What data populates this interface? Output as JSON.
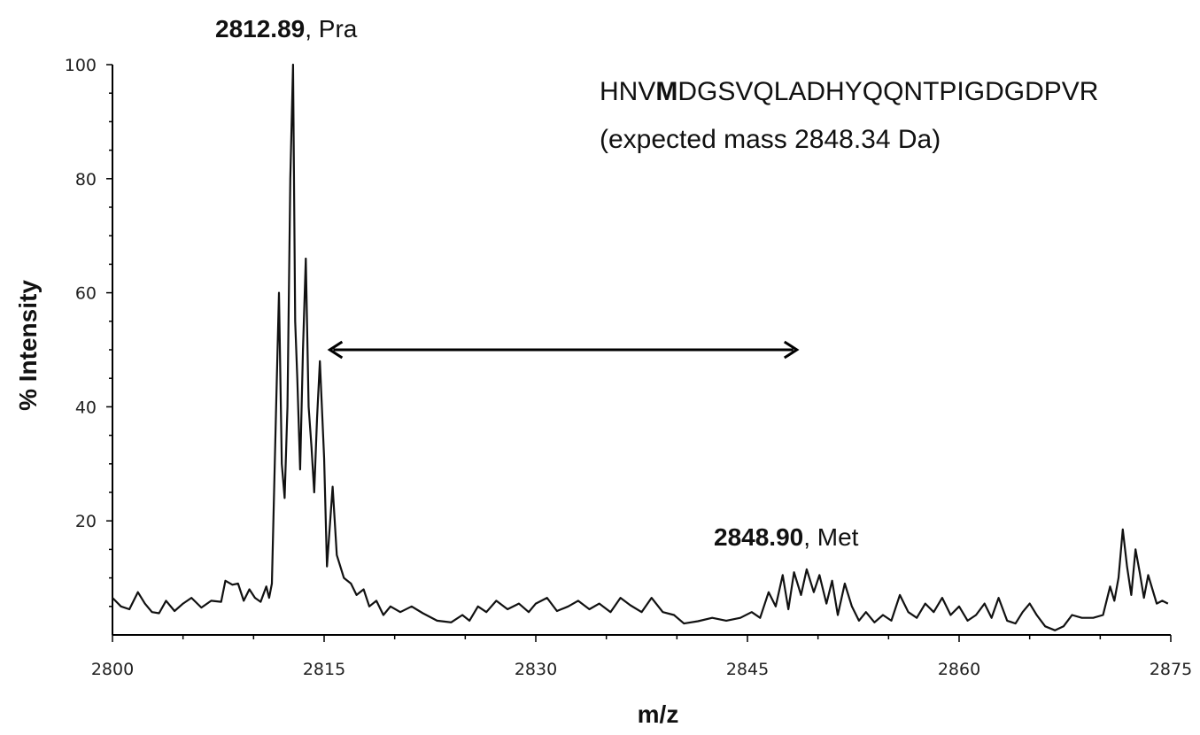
{
  "chart_data": {
    "type": "line",
    "xlabel": "m/z",
    "ylabel": "% Intensity",
    "xlim": [
      2800,
      2875
    ],
    "ylim": [
      0,
      100
    ],
    "x_ticks": [
      "2800",
      "2815",
      "2830",
      "2845",
      "2860",
      "2875"
    ],
    "y_ticks": [
      "20",
      "40",
      "60",
      "80",
      "100"
    ],
    "series": [
      {
        "points": [
          [
            2800.0,
            6.5
          ],
          [
            2800.6,
            5.0
          ],
          [
            2801.2,
            4.5
          ],
          [
            2801.8,
            7.5
          ],
          [
            2802.3,
            5.5
          ],
          [
            2802.8,
            4.0
          ],
          [
            2803.3,
            3.8
          ],
          [
            2803.8,
            6.0
          ],
          [
            2804.4,
            4.2
          ],
          [
            2805.0,
            5.5
          ],
          [
            2805.6,
            6.5
          ],
          [
            2806.3,
            4.8
          ],
          [
            2807.0,
            6.0
          ],
          [
            2807.7,
            5.8
          ],
          [
            2808.0,
            9.5
          ],
          [
            2808.5,
            8.8
          ],
          [
            2808.9,
            9.0
          ],
          [
            2809.3,
            6.0
          ],
          [
            2809.7,
            8.0
          ],
          [
            2810.1,
            6.5
          ],
          [
            2810.5,
            5.8
          ],
          [
            2810.9,
            8.5
          ],
          [
            2811.1,
            6.5
          ],
          [
            2811.3,
            9.0
          ],
          [
            2811.6,
            40.0
          ],
          [
            2811.8,
            60.0
          ],
          [
            2812.0,
            30.0
          ],
          [
            2812.2,
            24.0
          ],
          [
            2812.4,
            40.0
          ],
          [
            2812.6,
            80.0
          ],
          [
            2812.8,
            100.0
          ],
          [
            2812.95,
            55.0
          ],
          [
            2813.1,
            45.0
          ],
          [
            2813.3,
            29.0
          ],
          [
            2813.5,
            50.0
          ],
          [
            2813.7,
            66.0
          ],
          [
            2813.9,
            40.0
          ],
          [
            2814.1,
            33.0
          ],
          [
            2814.3,
            25.0
          ],
          [
            2814.5,
            38.0
          ],
          [
            2814.7,
            48.0
          ],
          [
            2815.0,
            31.0
          ],
          [
            2815.2,
            12.0
          ],
          [
            2815.6,
            26.0
          ],
          [
            2815.9,
            14.0
          ],
          [
            2816.4,
            10.0
          ],
          [
            2816.9,
            9.0
          ],
          [
            2817.3,
            7.0
          ],
          [
            2817.8,
            8.0
          ],
          [
            2818.2,
            5.0
          ],
          [
            2818.7,
            6.0
          ],
          [
            2819.2,
            3.5
          ],
          [
            2819.7,
            5.0
          ],
          [
            2820.4,
            4.0
          ],
          [
            2821.2,
            5.0
          ],
          [
            2822.0,
            3.8
          ],
          [
            2823.0,
            2.5
          ],
          [
            2824.0,
            2.2
          ],
          [
            2824.8,
            3.5
          ],
          [
            2825.3,
            2.5
          ],
          [
            2825.9,
            5.0
          ],
          [
            2826.5,
            4.0
          ],
          [
            2827.2,
            6.0
          ],
          [
            2828.0,
            4.5
          ],
          [
            2828.8,
            5.5
          ],
          [
            2829.5,
            4.0
          ],
          [
            2830.0,
            5.5
          ],
          [
            2830.8,
            6.5
          ],
          [
            2831.5,
            4.2
          ],
          [
            2832.3,
            5.0
          ],
          [
            2833.0,
            6.0
          ],
          [
            2833.8,
            4.5
          ],
          [
            2834.5,
            5.5
          ],
          [
            2835.3,
            4.0
          ],
          [
            2836.0,
            6.5
          ],
          [
            2836.7,
            5.2
          ],
          [
            2837.5,
            4.0
          ],
          [
            2838.2,
            6.5
          ],
          [
            2839.0,
            4.0
          ],
          [
            2839.8,
            3.5
          ],
          [
            2840.5,
            2.0
          ],
          [
            2841.5,
            2.4
          ],
          [
            2842.5,
            3.0
          ],
          [
            2843.5,
            2.5
          ],
          [
            2844.5,
            3.0
          ],
          [
            2845.3,
            4.0
          ],
          [
            2845.9,
            3.0
          ],
          [
            2846.5,
            7.5
          ],
          [
            2847.0,
            5.0
          ],
          [
            2847.5,
            10.5
          ],
          [
            2847.9,
            4.5
          ],
          [
            2848.3,
            11.0
          ],
          [
            2848.8,
            7.0
          ],
          [
            2849.2,
            11.5
          ],
          [
            2849.7,
            7.5
          ],
          [
            2850.1,
            10.5
          ],
          [
            2850.6,
            5.5
          ],
          [
            2851.0,
            9.5
          ],
          [
            2851.4,
            3.5
          ],
          [
            2851.9,
            9.0
          ],
          [
            2852.4,
            5.0
          ],
          [
            2852.9,
            2.5
          ],
          [
            2853.4,
            4.0
          ],
          [
            2854.0,
            2.2
          ],
          [
            2854.6,
            3.5
          ],
          [
            2855.2,
            2.5
          ],
          [
            2855.8,
            7.0
          ],
          [
            2856.4,
            4.0
          ],
          [
            2857.0,
            3.0
          ],
          [
            2857.6,
            5.5
          ],
          [
            2858.2,
            4.0
          ],
          [
            2858.8,
            6.5
          ],
          [
            2859.4,
            3.5
          ],
          [
            2860.0,
            5.0
          ],
          [
            2860.6,
            2.5
          ],
          [
            2861.2,
            3.5
          ],
          [
            2861.8,
            5.5
          ],
          [
            2862.3,
            3.0
          ],
          [
            2862.8,
            6.5
          ],
          [
            2863.4,
            2.5
          ],
          [
            2864.0,
            2.0
          ],
          [
            2864.5,
            4.0
          ],
          [
            2865.0,
            5.5
          ],
          [
            2865.5,
            3.5
          ],
          [
            2866.1,
            1.5
          ],
          [
            2866.8,
            0.8
          ],
          [
            2867.4,
            1.5
          ],
          [
            2868.0,
            3.5
          ],
          [
            2868.7,
            3.0
          ],
          [
            2869.5,
            3.0
          ],
          [
            2870.2,
            3.5
          ],
          [
            2870.7,
            8.5
          ],
          [
            2871.0,
            6.0
          ],
          [
            2871.3,
            10.0
          ],
          [
            2871.6,
            18.5
          ],
          [
            2871.9,
            12.0
          ],
          [
            2872.2,
            7.0
          ],
          [
            2872.5,
            15.0
          ],
          [
            2872.8,
            11.0
          ],
          [
            2873.1,
            6.5
          ],
          [
            2873.4,
            10.5
          ],
          [
            2873.7,
            8.0
          ],
          [
            2874.0,
            5.5
          ],
          [
            2874.4,
            6.0
          ],
          [
            2874.8,
            5.5
          ]
        ]
      }
    ],
    "annotations": {
      "pra_peak": "2812.89, Pra",
      "met_peak": "2848.90, Met",
      "sequence": "HNVMDGSVQLADHYQQNTPIGDGDPVR",
      "expected_mass": "(expected mass 2848.34 Da)"
    },
    "arrow": {
      "from_x": 2815.4,
      "to_x": 2848.5,
      "y": 50
    },
    "line_color": "#111111",
    "background": "#ffffff",
    "grid": false
  }
}
